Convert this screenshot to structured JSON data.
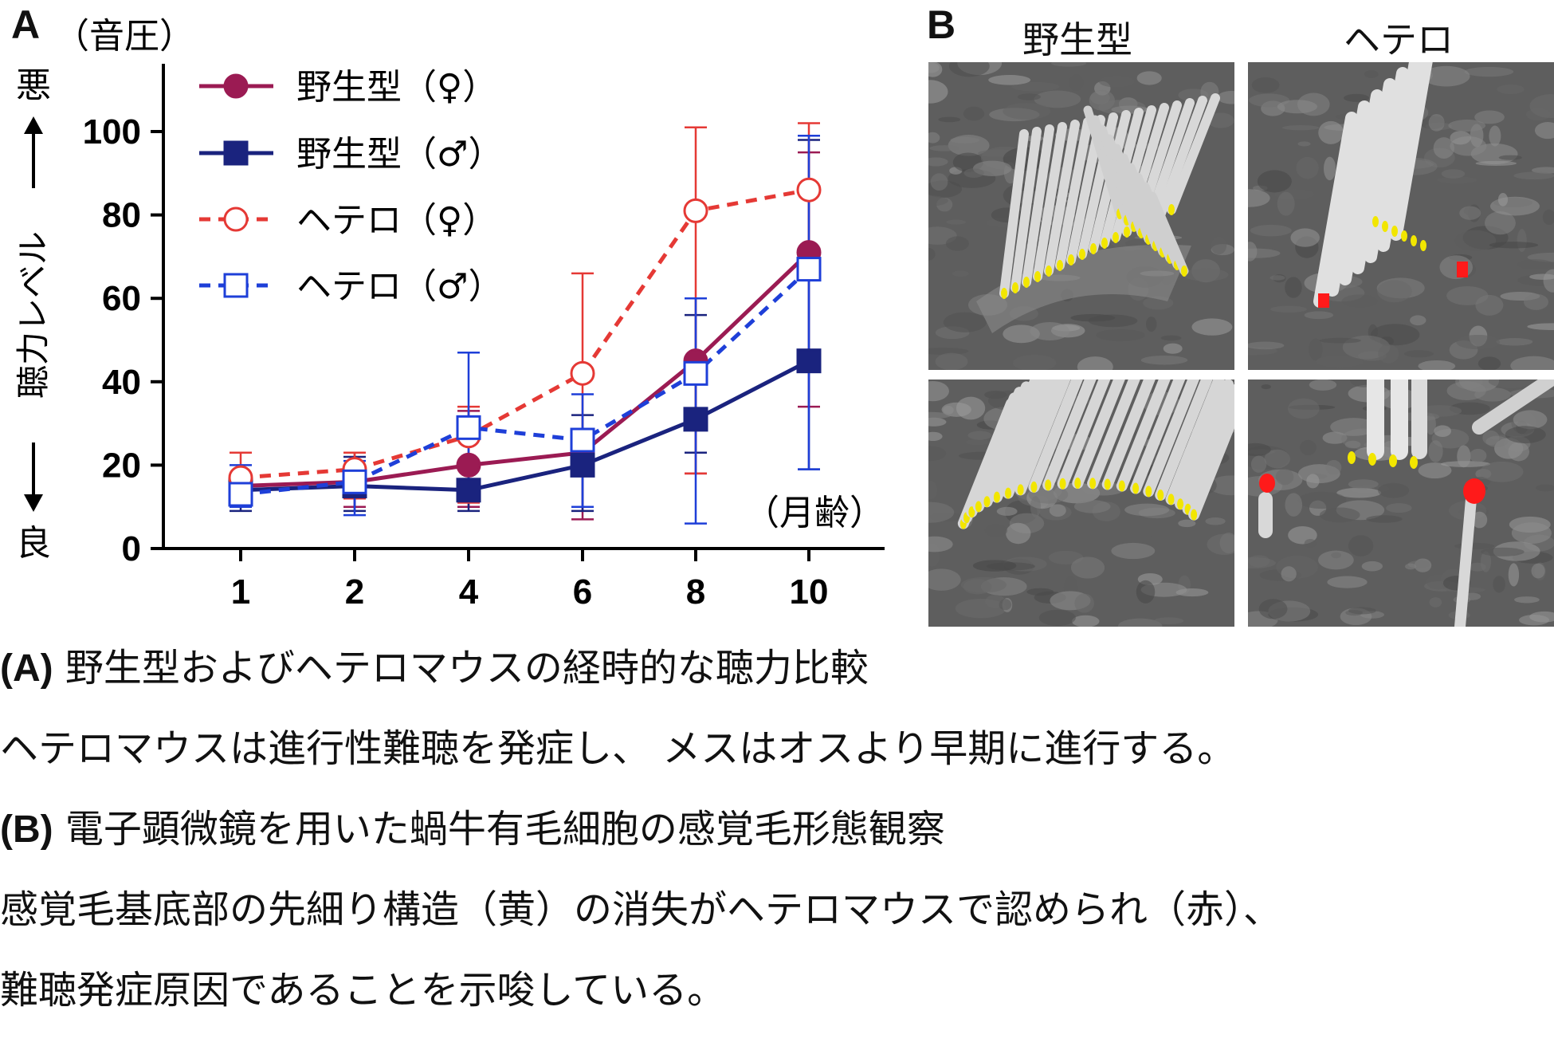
{
  "panel_a_letter": "A",
  "panel_b_letter": "B",
  "chart_data": {
    "type": "line",
    "y_unit_label": "（音圧）",
    "ylabel_top": "悪",
    "ylabel_middle": "聴力レベル",
    "ylabel_bottom": "良",
    "xlabel": "（月齢）",
    "x": [
      1,
      2,
      4,
      6,
      8,
      10
    ],
    "x_tick_labels": [
      "1",
      "2",
      "4",
      "6",
      "8",
      "10"
    ],
    "y_ticks": [
      0,
      20,
      40,
      60,
      80,
      100
    ],
    "ylim": [
      0,
      100
    ],
    "legend_position": "top-left",
    "grid": false,
    "series": [
      {
        "name": "野生型（♀）",
        "color": "#9b1b53",
        "line": "solid",
        "marker": "circle",
        "filled": true,
        "values": [
          15,
          16,
          20,
          23,
          45,
          71
        ],
        "err_upper": [
          18,
          23,
          33,
          28,
          60,
          95
        ],
        "err_lower": [
          10,
          10,
          10,
          7,
          18,
          34
        ]
      },
      {
        "name": "野生型（♂）",
        "color": "#1a237e",
        "line": "solid",
        "marker": "square",
        "filled": true,
        "values": [
          14,
          15,
          14,
          20,
          31,
          45
        ],
        "err_upper": [
          18,
          22,
          20,
          32,
          56,
          98
        ],
        "err_lower": [
          9,
          9,
          9,
          9,
          23,
          19
        ]
      },
      {
        "name": "ヘテロ（♀）",
        "color": "#e53935",
        "line": "dashed",
        "marker": "circle",
        "filled": false,
        "values": [
          17,
          19,
          27,
          42,
          81,
          86
        ],
        "err_upper": [
          23,
          23,
          34,
          66,
          101,
          102
        ],
        "err_lower": [
          12,
          12,
          11,
          18,
          18,
          68
        ]
      },
      {
        "name": "ヘテロ（♂）",
        "color": "#1e3fd8",
        "line": "dashed",
        "marker": "square",
        "filled": false,
        "values": [
          13,
          16,
          29,
          26,
          42,
          67
        ],
        "err_upper": [
          20,
          21,
          47,
          37,
          60,
          99
        ],
        "err_lower": [
          10,
          8,
          12,
          10,
          6,
          19
        ]
      }
    ]
  },
  "sem": {
    "col_wild": "野生型",
    "col_het": "ヘテロ",
    "tip_color": "#f2e600",
    "loss_color": "#ff1a1a"
  },
  "caption": {
    "line1_tag": "(A)",
    "line1_text": " 野生型およびヘテロマウスの経時的な聴力比較",
    "line2": "ヘテロマウスは進行性難聴を発症し、 メスはオスより早期に進行する。",
    "line3_tag": "(B)",
    "line3_text": " 電子顕微鏡を用いた蝸牛有毛細胞の感覚毛形態観察",
    "line4": "感覚毛基底部の先細り構造（黄）の消失がヘテロマウスで認められ（赤）、",
    "line5": "難聴発症原因であることを示唆している。"
  }
}
